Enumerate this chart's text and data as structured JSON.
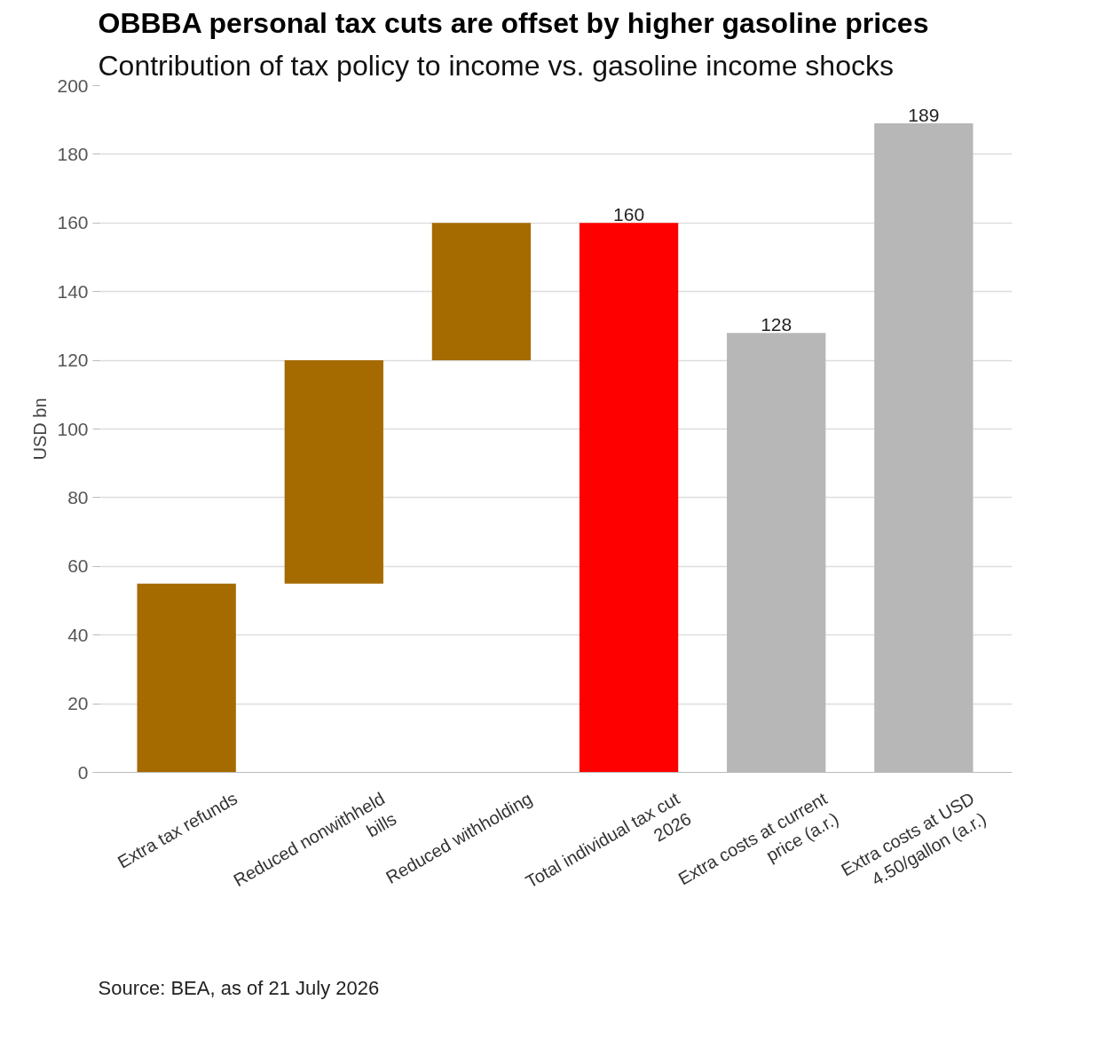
{
  "chart_data": {
    "type": "bar",
    "title": "OBBBA personal tax cuts are offset by higher gasoline prices",
    "subtitle": "Contribution of tax policy to income vs. gasoline income shocks",
    "ylabel": "USD bn",
    "categories": [
      "Extra tax refunds",
      "Reduced nonwithheld\nbills",
      "Reduced withholding",
      "Total individual tax cut\n2026",
      "Extra costs at current\nprice (a.r.)",
      "Extra costs at USD\n4.50/gallon (a.r.)"
    ],
    "values": [
      55,
      65,
      40,
      160,
      128,
      189
    ],
    "base": [
      0,
      55,
      120,
      0,
      0,
      0
    ],
    "colors": [
      "#a56a00",
      "#a56a00",
      "#a56a00",
      "#ff0000",
      "#b7b7b7",
      "#b7b7b7"
    ],
    "value_labels": [
      null,
      null,
      null,
      "160",
      "128",
      "189"
    ],
    "ylim": [
      0,
      200
    ],
    "yticks": [
      0,
      20,
      40,
      60,
      80,
      100,
      120,
      140,
      160,
      180,
      200
    ],
    "grid": "y",
    "annotations": [
      "Source: BEA, as of 21 July 2026"
    ]
  }
}
